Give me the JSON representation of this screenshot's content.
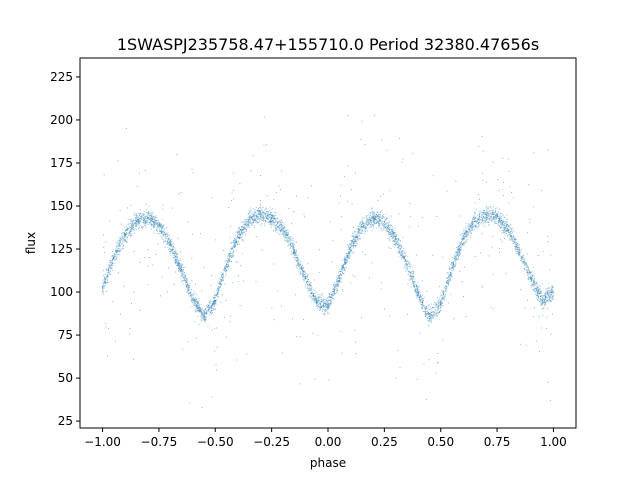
{
  "chart_data": {
    "type": "scatter",
    "title": "1SWASPJ235758.47+155710.0 Period 32380.47656s",
    "xlabel": "phase",
    "ylabel": "flux",
    "xlim": [
      -1.1,
      1.1
    ],
    "ylim": [
      21,
      236
    ],
    "grid": false,
    "legend": "none",
    "marker_color": "#1f77b4",
    "x_ticks": [
      -1.0,
      -0.75,
      -0.5,
      -0.25,
      0.0,
      0.25,
      0.5,
      0.75,
      1.0
    ],
    "x_tick_labels": [
      "−1.00",
      "−0.75",
      "−0.50",
      "−0.25",
      "0.00",
      "0.25",
      "0.50",
      "0.75",
      "1.00"
    ],
    "y_ticks": [
      25,
      50,
      75,
      100,
      125,
      150,
      175,
      200,
      225
    ],
    "y_tick_labels": [
      "25",
      "50",
      "75",
      "100",
      "125",
      "150",
      "175",
      "200",
      "225"
    ],
    "series": [
      {
        "x": [
          -1.0,
          -0.95,
          -0.9,
          -0.85,
          -0.8,
          -0.75,
          -0.7,
          -0.65,
          -0.6,
          -0.55,
          -0.5,
          -0.45,
          -0.4,
          -0.35,
          -0.3,
          -0.25,
          -0.2,
          -0.15,
          -0.1,
          -0.05,
          0.0,
          0.05,
          0.1,
          0.15,
          0.2,
          0.25,
          0.3,
          0.35,
          0.4,
          0.45,
          0.5,
          0.55,
          0.6,
          0.65,
          0.7,
          0.75,
          0.8,
          0.85,
          0.9,
          0.95,
          1.0
        ],
        "y": [
          103,
          120,
          133,
          141,
          143,
          139,
          128,
          113,
          96,
          86,
          95,
          116,
          132,
          142,
          145,
          143,
          137,
          124,
          108,
          94,
          92,
          108,
          126,
          138,
          143,
          141,
          131,
          116,
          99,
          86,
          93,
          114,
          131,
          141,
          145,
          144,
          136,
          123,
          108,
          95,
          100
        ]
      }
    ]
  }
}
